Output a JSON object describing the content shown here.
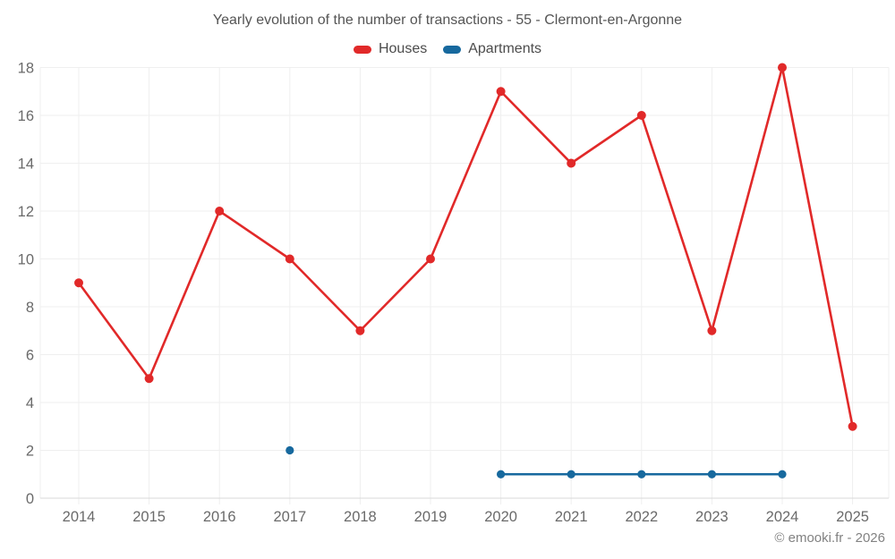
{
  "header": {
    "title": "Yearly evolution of the number of transactions - 55 - Clermont-en-Argonne"
  },
  "legend": [
    {
      "label": "Houses",
      "color": "#e12929"
    },
    {
      "label": "Apartments",
      "color": "#17699e"
    }
  ],
  "footer": {
    "credit": "© emooki.fr - 2026"
  },
  "colors": {
    "houses": "#e12929",
    "apartments": "#17699e",
    "gridline": "#efefef",
    "axis_line": "#d8d8d8",
    "tick_label": "#6a6a6a"
  },
  "chart_data": {
    "type": "line",
    "title": "Yearly evolution of the number of transactions - 55 - Clermont-en-Argonne",
    "categories": [
      "2014",
      "2015",
      "2016",
      "2017",
      "2018",
      "2019",
      "2020",
      "2021",
      "2022",
      "2023",
      "2024",
      "2025"
    ],
    "series": [
      {
        "name": "Houses",
        "color": "#e12929",
        "values": [
          9,
          5,
          12,
          10,
          7,
          10,
          17,
          14,
          16,
          7,
          18,
          3
        ]
      },
      {
        "name": "Apartments",
        "color": "#17699e",
        "values": [
          null,
          null,
          null,
          2,
          null,
          null,
          1,
          1,
          1,
          1,
          1,
          null
        ]
      }
    ],
    "xlabel": "",
    "ylabel": "",
    "ylim": [
      0,
      18
    ],
    "yticks": [
      0,
      2,
      4,
      6,
      8,
      10,
      12,
      14,
      16,
      18
    ],
    "grid": true,
    "legend_position": "top"
  }
}
